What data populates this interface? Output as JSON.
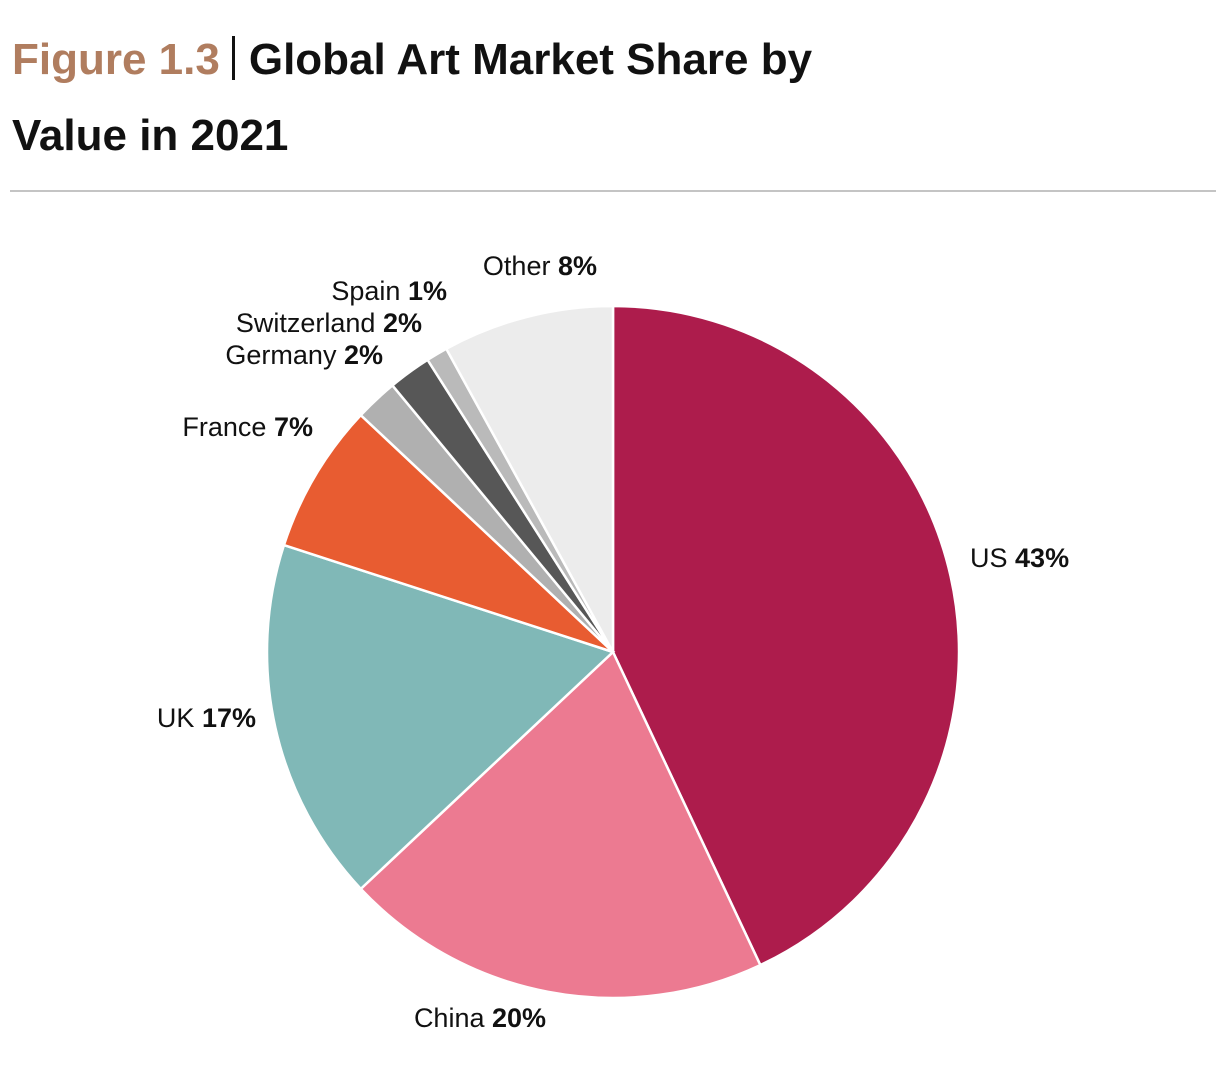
{
  "chart_data": {
    "type": "pie",
    "figure_label": "Figure 1.3",
    "title": "Global Art Market Share by Value in 2021",
    "categories": [
      "US",
      "China",
      "UK",
      "France",
      "Germany",
      "Switzerland",
      "Spain",
      "Other"
    ],
    "values": [
      43,
      20,
      17,
      7,
      2,
      2,
      1,
      8
    ],
    "value_labels": [
      "43%",
      "20%",
      "17%",
      "7%",
      "2%",
      "2%",
      "1%",
      "8%"
    ],
    "colors": [
      "#ad1c4c",
      "#ec7a91",
      "#80b8b7",
      "#e85c31",
      "#b0b0b0",
      "#575757",
      "#bababa",
      "#ececec"
    ]
  }
}
